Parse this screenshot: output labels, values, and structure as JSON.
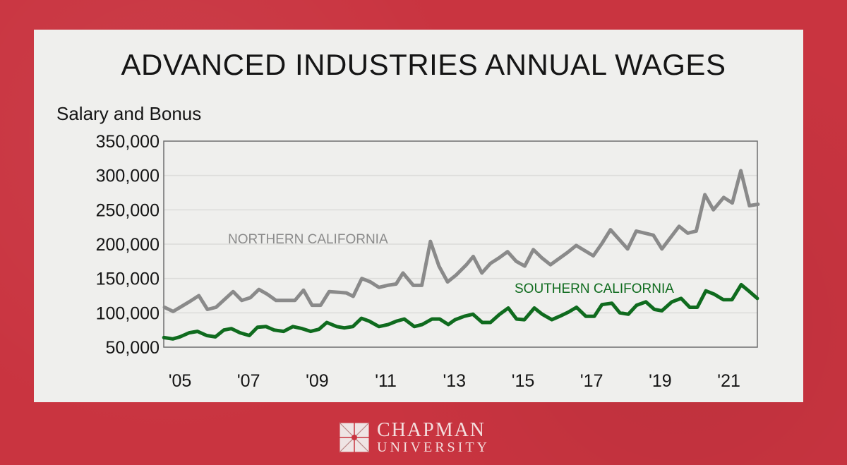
{
  "colors": {
    "background": "#c93440",
    "panel": "#efefed",
    "north": "#8a8a8a",
    "south": "#0f6b1e"
  },
  "logo": {
    "line1": "CHAPMAN",
    "line2": "UNIVERSITY"
  },
  "chart_data": {
    "type": "line",
    "title": "ADVANCED INDUSTRIES ANNUAL WAGES",
    "ylabel": "Salary and Bonus",
    "xlabel": "",
    "ylim": [
      50000,
      350000
    ],
    "xlim": [
      2004.55,
      2021.85
    ],
    "yticks": [
      50000,
      100000,
      150000,
      200000,
      250000,
      300000,
      350000
    ],
    "ytick_labels": [
      "50,000",
      "100,000",
      "150,000",
      "200,000",
      "250,000",
      "300,000",
      "350,000"
    ],
    "xticks": [
      2005,
      2007,
      2009,
      2011,
      2013,
      2015,
      2017,
      2019,
      2021
    ],
    "xtick_labels": [
      "'05",
      "'07",
      "'09",
      "'11",
      "'13",
      "'15",
      "'17",
      "'19",
      "'21"
    ],
    "grid": true,
    "series": [
      {
        "name": "NORTHERN CALIFORNIA",
        "color": "#8a8a8a",
        "x": [
          2004.55,
          2004.8,
          2005.3,
          2005.55,
          2005.8,
          2006.05,
          2006.55,
          2006.8,
          2007.05,
          2007.3,
          2007.55,
          2007.8,
          2008.35,
          2008.6,
          2008.85,
          2009.1,
          2009.35,
          2009.85,
          2010.05,
          2010.3,
          2010.55,
          2010.8,
          2011.05,
          2011.3,
          2011.5,
          2011.8,
          2012.05,
          2012.3,
          2012.55,
          2012.8,
          2013.05,
          2013.35,
          2013.55,
          2013.8,
          2014.05,
          2014.3,
          2014.55,
          2014.8,
          2015.05,
          2015.3,
          2015.55,
          2015.8,
          2016.3,
          2016.55,
          2017.05,
          2017.3,
          2017.55,
          2018.05,
          2018.3,
          2018.8,
          2019.05,
          2019.55,
          2019.8,
          2020.05,
          2020.3,
          2020.55,
          2020.85,
          2021.1,
          2021.35,
          2021.6,
          2021.85
        ],
        "y": [
          108000,
          102000,
          117000,
          125000,
          105000,
          108000,
          131000,
          118000,
          122000,
          134000,
          127000,
          118000,
          118000,
          133000,
          111000,
          111000,
          131000,
          129000,
          124000,
          150000,
          145000,
          137000,
          140000,
          142000,
          158000,
          140000,
          140000,
          204000,
          168000,
          145000,
          155000,
          170000,
          182000,
          158000,
          172000,
          180000,
          189000,
          175000,
          168000,
          192000,
          180000,
          170000,
          188000,
          198000,
          183000,
          201000,
          221000,
          193000,
          219000,
          213000,
          193000,
          226000,
          216000,
          219000,
          272000,
          250000,
          268000,
          260000,
          307000,
          256000,
          258000
        ]
      },
      {
        "name": "SOUTHERN CALIFORNIA",
        "color": "#0f6b1e",
        "x": [
          2004.53,
          2004.79,
          2005.0,
          2005.27,
          2005.51,
          2005.78,
          2006.03,
          2006.28,
          2006.5,
          2006.75,
          2007.02,
          2007.26,
          2007.51,
          2007.74,
          2008.02,
          2008.29,
          2008.56,
          2008.81,
          2009.05,
          2009.28,
          2009.57,
          2009.79,
          2010.04,
          2010.29,
          2010.51,
          2010.8,
          2011.07,
          2011.32,
          2011.54,
          2011.83,
          2012.06,
          2012.35,
          2012.57,
          2012.82,
          2013.02,
          2013.29,
          2013.54,
          2013.81,
          2014.05,
          2014.32,
          2014.57,
          2014.81,
          2015.04,
          2015.33,
          2015.56,
          2015.84,
          2016.07,
          2016.32,
          2016.56,
          2016.83,
          2017.08,
          2017.3,
          2017.59,
          2017.82,
          2018.07,
          2018.31,
          2018.58,
          2018.83,
          2019.05,
          2019.34,
          2019.61,
          2019.86,
          2020.08,
          2020.33,
          2020.58,
          2020.84,
          2021.09,
          2021.36,
          2021.6,
          2021.83
        ],
        "y": [
          64000,
          62000,
          65000,
          71000,
          73000,
          67000,
          65000,
          75000,
          77000,
          71000,
          67000,
          79000,
          80000,
          75000,
          73000,
          80000,
          77000,
          73000,
          76000,
          86000,
          80000,
          78000,
          80000,
          92000,
          88000,
          80000,
          83000,
          88000,
          91000,
          80000,
          83000,
          91000,
          91000,
          83000,
          90000,
          95000,
          98000,
          86000,
          86000,
          98000,
          107000,
          91000,
          90000,
          107000,
          98000,
          90000,
          95000,
          101000,
          108000,
          95000,
          95000,
          112000,
          114000,
          100000,
          98000,
          111000,
          116000,
          105000,
          103000,
          116000,
          121000,
          108000,
          108000,
          132000,
          127000,
          119000,
          119000,
          141000,
          131000,
          121000
        ]
      }
    ]
  }
}
